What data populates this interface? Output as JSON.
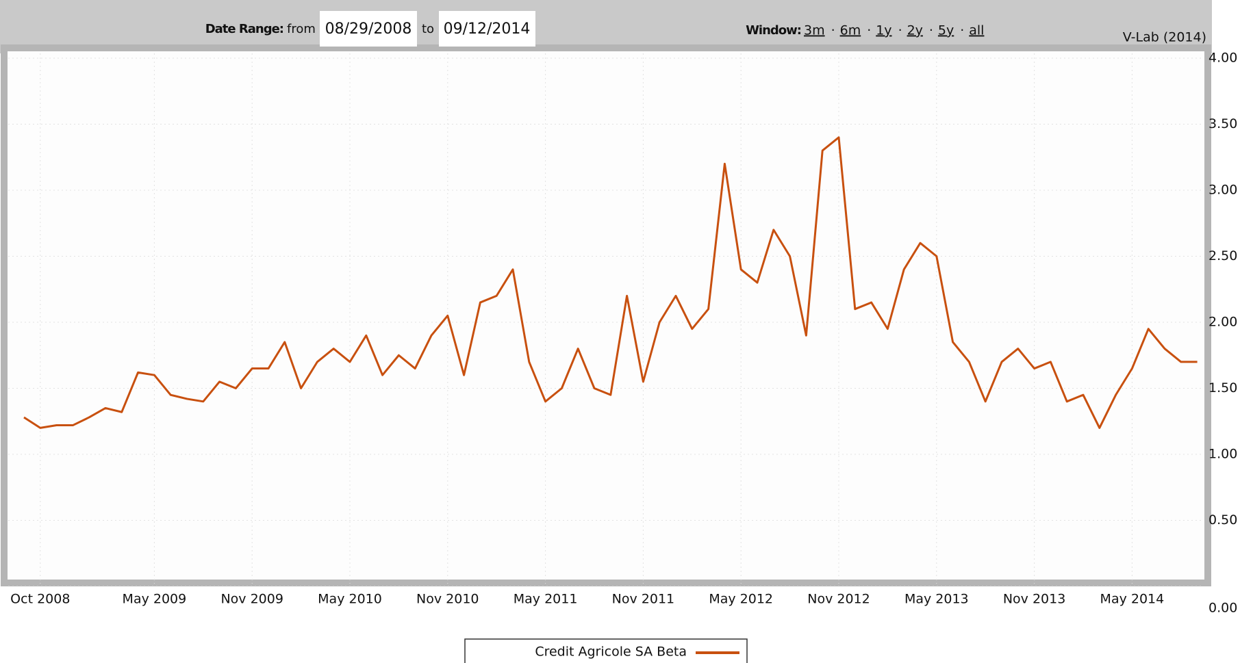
{
  "controls": {
    "date_range_label": "Date Range:",
    "from_label": "from",
    "from_date": "08/29/2008",
    "to_label": "to",
    "to_date": "09/12/2014",
    "window_label": "Window:",
    "windows": [
      "3m",
      "6m",
      "1y",
      "2y",
      "5y",
      "all"
    ],
    "separator": "·",
    "credit": "V-Lab (2014)"
  },
  "chart_data": {
    "type": "line",
    "x": [
      "Sep 2008",
      "Oct 2008",
      "Nov 2008",
      "Dec 2008",
      "Jan 2009",
      "Feb 2009",
      "Mar 2009",
      "Apr 2009",
      "May 2009",
      "Jun 2009",
      "Jul 2009",
      "Aug 2009",
      "Sep 2009",
      "Oct 2009",
      "Nov 2009",
      "Dec 2009",
      "Jan 2010",
      "Feb 2010",
      "Mar 2010",
      "Apr 2010",
      "May 2010",
      "Jun 2010",
      "Jul 2010",
      "Aug 2010",
      "Sep 2010",
      "Oct 2010",
      "Nov 2010",
      "Dec 2010",
      "Jan 2011",
      "Feb 2011",
      "Mar 2011",
      "Apr 2011",
      "May 2011",
      "Jun 2011",
      "Jul 2011",
      "Aug 2011",
      "Sep 2011",
      "Oct 2011",
      "Nov 2011",
      "Dec 2011",
      "Jan 2012",
      "Feb 2012",
      "Mar 2012",
      "Apr 2012",
      "May 2012",
      "Jun 2012",
      "Jul 2012",
      "Aug 2012",
      "Sep 2012",
      "Oct 2012",
      "Nov 2012",
      "Dec 2012",
      "Jan 2013",
      "Feb 2013",
      "Mar 2013",
      "Apr 2013",
      "May 2013",
      "Jun 2013",
      "Jul 2013",
      "Aug 2013",
      "Sep 2013",
      "Oct 2013",
      "Nov 2013",
      "Dec 2013",
      "Jan 2014",
      "Feb 2014",
      "Mar 2014",
      "Apr 2014",
      "May 2014",
      "Jun 2014",
      "Jul 2014",
      "Aug 2014",
      "Sep 2014"
    ],
    "series": [
      {
        "name": "Credit Agricole SA Beta",
        "color": "#c8500f",
        "values": [
          1.28,
          1.2,
          1.22,
          1.22,
          1.28,
          1.35,
          1.32,
          1.62,
          1.6,
          1.45,
          1.42,
          1.4,
          1.55,
          1.5,
          1.65,
          1.65,
          1.85,
          1.5,
          1.7,
          1.8,
          1.7,
          1.9,
          1.6,
          1.75,
          1.65,
          1.9,
          2.05,
          1.6,
          2.15,
          2.2,
          2.4,
          1.7,
          1.4,
          1.5,
          1.8,
          1.5,
          1.45,
          2.2,
          1.55,
          2.0,
          2.2,
          1.95,
          2.1,
          3.2,
          2.4,
          2.3,
          2.7,
          2.5,
          1.9,
          3.3,
          3.4,
          2.1,
          2.15,
          1.95,
          2.4,
          2.6,
          2.5,
          1.85,
          1.7,
          1.4,
          1.7,
          1.8,
          1.65,
          1.7,
          1.4,
          1.45,
          1.2,
          1.45,
          1.65,
          1.95,
          1.8,
          1.7,
          1.7
        ]
      }
    ],
    "xticks": [
      "Oct 2008",
      "May 2009",
      "Nov 2009",
      "May 2010",
      "Nov 2010",
      "May 2011",
      "Nov 2011",
      "May 2012",
      "Nov 2012",
      "May 2013",
      "Nov 2013",
      "May 2014"
    ],
    "ylim": [
      0,
      4
    ],
    "yticks": [
      {
        "value": 0,
        "label": "0.00"
      },
      {
        "value": 0.5,
        "label": "0.50"
      },
      {
        "value": 1,
        "label": "1.00"
      },
      {
        "value": 1.5,
        "label": "1.50"
      },
      {
        "value": 2,
        "label": "2.00"
      },
      {
        "value": 2.5,
        "label": "2.50"
      },
      {
        "value": 3,
        "label": "3.00"
      },
      {
        "value": 3.5,
        "label": "3.50"
      },
      {
        "value": 4,
        "label": "4.00"
      }
    ],
    "grid": true
  }
}
